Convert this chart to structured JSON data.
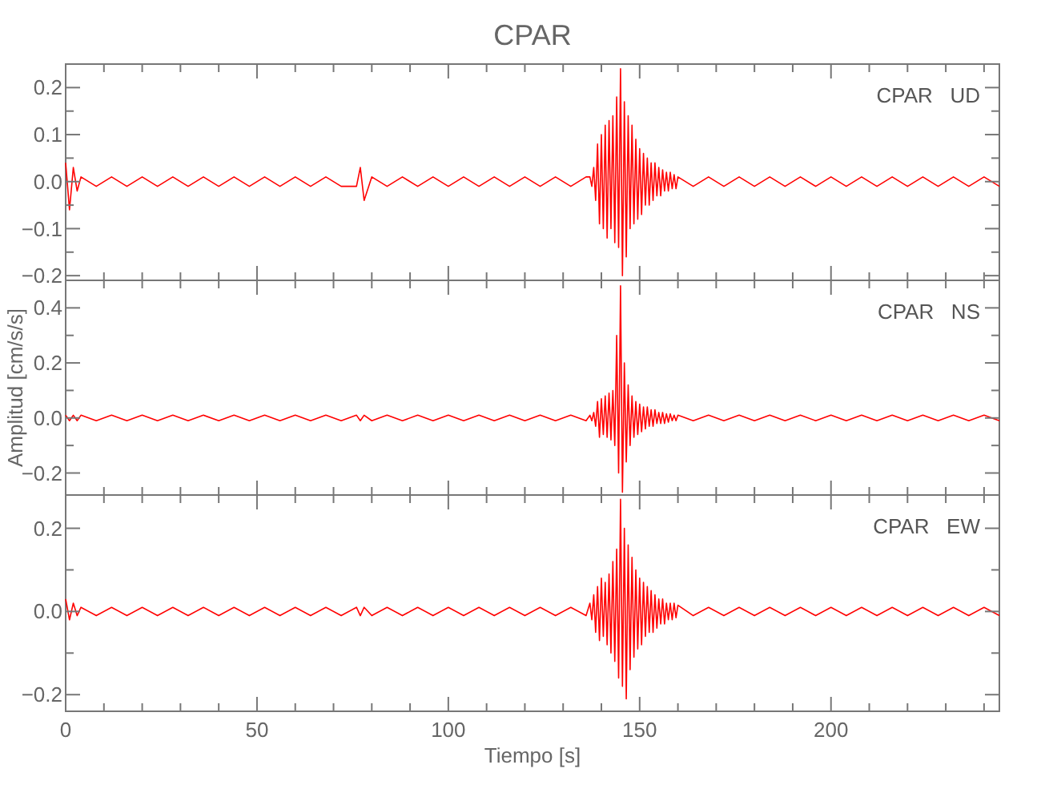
{
  "chart_data": [
    {
      "type": "line",
      "title": "CPAR",
      "annotations": [
        "CPAR   UD"
      ],
      "tick_labels": "y",
      "xlim": [
        0,
        244
      ],
      "ylim": [
        -0.21,
        0.25
      ],
      "xticks": [
        0,
        {
          "value": 10,
          "label": null
        },
        {
          "value": 20,
          "label": null
        },
        {
          "value": 30,
          "label": null
        },
        {
          "value": 40,
          "label": null
        },
        50,
        {
          "value": 60,
          "label": null
        },
        {
          "value": 70,
          "label": null
        },
        {
          "value": 80,
          "label": null
        },
        {
          "value": 90,
          "label": null
        },
        100,
        {
          "value": 110,
          "label": null
        },
        {
          "value": 120,
          "label": null
        },
        {
          "value": 130,
          "label": null
        },
        {
          "value": 140,
          "label": null
        },
        150,
        {
          "value": 160,
          "label": null
        },
        {
          "value": 170,
          "label": null
        },
        {
          "value": 180,
          "label": null
        },
        {
          "value": 190,
          "label": null
        },
        200,
        {
          "value": 210,
          "label": null
        },
        {
          "value": 220,
          "label": null
        },
        {
          "value": 230,
          "label": null
        },
        {
          "value": 240,
          "label": null
        }
      ],
      "yticks": [
        {
          "value": -0.2,
          "label": "−0.2"
        },
        {
          "value": -0.15,
          "label": null
        },
        {
          "value": -0.1,
          "label": "−0.1"
        },
        {
          "value": -0.05,
          "label": null
        },
        {
          "value": 0,
          "label": "0.0"
        },
        {
          "value": 0.05,
          "label": null
        },
        0.1,
        {
          "value": 0.15,
          "label": null
        },
        0.2
      ],
      "x": [
        0,
        1,
        2,
        3,
        4,
        8,
        12,
        16,
        20,
        24,
        28,
        32,
        36,
        40,
        44,
        48,
        52,
        56,
        60,
        64,
        68,
        72,
        76,
        77,
        78,
        80,
        84,
        88,
        92,
        96,
        100,
        104,
        108,
        112,
        116,
        120,
        124,
        128,
        132,
        136,
        137,
        137.5,
        138,
        138.5,
        139,
        139.5,
        140,
        140.5,
        141,
        141.5,
        142,
        142.5,
        143,
        143.5,
        144,
        144.5,
        145,
        145.5,
        146,
        146.5,
        147,
        147.5,
        148,
        148.5,
        149,
        149.5,
        150,
        150.5,
        151,
        151.5,
        152,
        152.5,
        153,
        153.5,
        154,
        154.5,
        155,
        155.5,
        156,
        156.5,
        157,
        157.5,
        158,
        158.5,
        159,
        159.5,
        160,
        164,
        168,
        172,
        176,
        180,
        184,
        188,
        192,
        196,
        200,
        204,
        208,
        212,
        216,
        220,
        224,
        228,
        232,
        236,
        240,
        244
      ],
      "series": [
        {
          "color": "#ff0000",
          "values": [
            0.04,
            -0.06,
            0.03,
            -0.02,
            0.01,
            -0.01,
            0.01,
            -0.01,
            0.01,
            -0.01,
            0.01,
            -0.01,
            0.01,
            -0.01,
            0.01,
            -0.01,
            0.01,
            -0.01,
            0.01,
            -0.01,
            0.01,
            -0.01,
            -0.01,
            0.03,
            -0.04,
            0.01,
            -0.01,
            0.01,
            -0.01,
            0.01,
            -0.01,
            0.01,
            -0.01,
            0.01,
            -0.01,
            0.01,
            -0.01,
            0.01,
            -0.01,
            0.01,
            0.01,
            -0.01,
            0.03,
            -0.04,
            0.08,
            -0.09,
            0.1,
            -0.1,
            0.12,
            -0.12,
            0.13,
            -0.1,
            0.14,
            -0.13,
            0.18,
            -0.14,
            0.24,
            -0.2,
            0.17,
            -0.16,
            0.14,
            -0.1,
            0.12,
            -0.09,
            0.09,
            -0.08,
            0.07,
            -0.07,
            0.06,
            -0.05,
            0.05,
            -0.05,
            0.04,
            -0.04,
            0.04,
            -0.03,
            0.03,
            -0.03,
            0.025,
            -0.02,
            0.02,
            -0.02,
            0.02,
            -0.015,
            0.015,
            -0.015,
            0.01,
            -0.01,
            0.01,
            -0.01,
            0.01,
            -0.01,
            0.01,
            -0.01,
            0.01,
            -0.01,
            0.01,
            -0.01,
            0.01,
            -0.01,
            0.01,
            -0.01,
            0.01,
            -0.01,
            0.01,
            -0.01,
            0.01,
            -0.01
          ]
        }
      ]
    },
    {
      "type": "line",
      "ylabel": "Amplitud  [cm/s/s]",
      "annotations": [
        "CPAR   NS"
      ],
      "tick_labels": "y",
      "xlim": [
        0,
        244
      ],
      "ylim": [
        -0.28,
        0.5
      ],
      "xticks": [
        0,
        {
          "value": 10,
          "label": null
        },
        {
          "value": 20,
          "label": null
        },
        {
          "value": 30,
          "label": null
        },
        {
          "value": 40,
          "label": null
        },
        50,
        {
          "value": 60,
          "label": null
        },
        {
          "value": 70,
          "label": null
        },
        {
          "value": 80,
          "label": null
        },
        {
          "value": 90,
          "label": null
        },
        100,
        {
          "value": 110,
          "label": null
        },
        {
          "value": 120,
          "label": null
        },
        {
          "value": 130,
          "label": null
        },
        {
          "value": 140,
          "label": null
        },
        150,
        {
          "value": 160,
          "label": null
        },
        {
          "value": 170,
          "label": null
        },
        {
          "value": 180,
          "label": null
        },
        {
          "value": 190,
          "label": null
        },
        200,
        {
          "value": 210,
          "label": null
        },
        {
          "value": 220,
          "label": null
        },
        {
          "value": 230,
          "label": null
        },
        {
          "value": 240,
          "label": null
        }
      ],
      "yticks": [
        {
          "value": -0.2,
          "label": "−0.2"
        },
        {
          "value": -0.1,
          "label": null
        },
        {
          "value": 0,
          "label": "0.0"
        },
        {
          "value": 0.1,
          "label": null
        },
        0.2,
        {
          "value": 0.3,
          "label": null
        },
        0.4
      ],
      "x": [
        0,
        1,
        2,
        3,
        4,
        8,
        12,
        16,
        20,
        24,
        28,
        32,
        36,
        40,
        44,
        48,
        52,
        56,
        60,
        64,
        68,
        72,
        76,
        77,
        78,
        80,
        84,
        88,
        92,
        96,
        100,
        104,
        108,
        112,
        116,
        120,
        124,
        128,
        132,
        136,
        137,
        137.5,
        138,
        138.5,
        139,
        139.5,
        140,
        140.5,
        141,
        141.5,
        142,
        142.5,
        143,
        143.5,
        144,
        144.5,
        145,
        145.5,
        146,
        146.5,
        147,
        147.5,
        148,
        148.5,
        149,
        149.5,
        150,
        150.5,
        151,
        151.5,
        152,
        152.5,
        153,
        153.5,
        154,
        154.5,
        155,
        155.5,
        156,
        156.5,
        157,
        157.5,
        158,
        158.5,
        159,
        159.5,
        160,
        164,
        168,
        172,
        176,
        180,
        184,
        188,
        192,
        196,
        200,
        204,
        208,
        212,
        216,
        220,
        224,
        228,
        232,
        236,
        240,
        244
      ],
      "series": [
        {
          "color": "#ff0000",
          "values": [
            0.01,
            -0.01,
            0.01,
            -0.01,
            0.01,
            -0.01,
            0.01,
            -0.01,
            0.01,
            -0.01,
            0.01,
            -0.01,
            0.01,
            -0.01,
            0.01,
            -0.01,
            0.01,
            -0.01,
            0.01,
            -0.01,
            0.01,
            -0.01,
            0.01,
            -0.01,
            0.01,
            -0.01,
            0.01,
            -0.01,
            0.01,
            -0.01,
            0.01,
            -0.01,
            0.01,
            -0.01,
            0.01,
            -0.01,
            0.01,
            -0.01,
            0.01,
            -0.01,
            0.01,
            -0.01,
            0.02,
            -0.03,
            0.06,
            -0.07,
            0.07,
            -0.06,
            0.08,
            -0.07,
            0.09,
            -0.08,
            0.1,
            -0.1,
            0.3,
            -0.2,
            0.48,
            -0.27,
            0.2,
            -0.16,
            0.12,
            -0.1,
            0.08,
            -0.07,
            0.06,
            -0.06,
            0.05,
            -0.05,
            0.04,
            -0.04,
            0.04,
            -0.03,
            0.03,
            -0.03,
            0.03,
            -0.02,
            0.02,
            -0.02,
            0.02,
            -0.02,
            0.015,
            -0.015,
            0.015,
            -0.01,
            0.01,
            -0.01,
            0.01,
            -0.01,
            0.01,
            -0.01,
            0.01,
            -0.01,
            0.01,
            -0.01,
            0.01,
            -0.01,
            0.01,
            -0.01,
            0.01,
            -0.01,
            0.01,
            -0.01,
            0.01,
            -0.01,
            0.01,
            -0.01,
            0.01,
            -0.01
          ]
        }
      ]
    },
    {
      "type": "line",
      "xlabel": "Tiempo  [s]",
      "annotations": [
        "CPAR   EW"
      ],
      "xlim": [
        0,
        244
      ],
      "ylim": [
        -0.24,
        0.28
      ],
      "xticks": [
        0,
        {
          "value": 10,
          "label": null
        },
        {
          "value": 20,
          "label": null
        },
        {
          "value": 30,
          "label": null
        },
        {
          "value": 40,
          "label": null
        },
        50,
        {
          "value": 60,
          "label": null
        },
        {
          "value": 70,
          "label": null
        },
        {
          "value": 80,
          "label": null
        },
        {
          "value": 90,
          "label": null
        },
        100,
        {
          "value": 110,
          "label": null
        },
        {
          "value": 120,
          "label": null
        },
        {
          "value": 130,
          "label": null
        },
        {
          "value": 140,
          "label": null
        },
        150,
        {
          "value": 160,
          "label": null
        },
        {
          "value": 170,
          "label": null
        },
        {
          "value": 180,
          "label": null
        },
        {
          "value": 190,
          "label": null
        },
        200,
        {
          "value": 210,
          "label": null
        },
        {
          "value": 220,
          "label": null
        },
        {
          "value": 230,
          "label": null
        },
        {
          "value": 240,
          "label": null
        }
      ],
      "yticks": [
        {
          "value": -0.2,
          "label": "−0.2"
        },
        {
          "value": -0.1,
          "label": null
        },
        {
          "value": 0,
          "label": "0.0"
        },
        {
          "value": 0.1,
          "label": null
        },
        0.2
      ],
      "x": [
        0,
        1,
        2,
        3,
        4,
        8,
        12,
        16,
        20,
        24,
        28,
        32,
        36,
        40,
        44,
        48,
        52,
        56,
        60,
        64,
        68,
        72,
        76,
        77,
        78,
        80,
        84,
        88,
        92,
        96,
        100,
        104,
        108,
        112,
        116,
        120,
        124,
        128,
        132,
        136,
        137,
        137.5,
        138,
        138.5,
        139,
        139.5,
        140,
        140.5,
        141,
        141.5,
        142,
        142.5,
        143,
        143.5,
        144,
        144.5,
        145,
        145.5,
        146,
        146.5,
        147,
        147.5,
        148,
        148.5,
        149,
        149.5,
        150,
        150.5,
        151,
        151.5,
        152,
        152.5,
        153,
        153.5,
        154,
        154.5,
        155,
        155.5,
        156,
        156.5,
        157,
        157.5,
        158,
        158.5,
        159,
        159.5,
        160,
        164,
        168,
        172,
        176,
        180,
        184,
        188,
        192,
        196,
        200,
        204,
        208,
        212,
        216,
        220,
        224,
        228,
        232,
        236,
        240,
        244
      ],
      "series": [
        {
          "color": "#ff0000",
          "values": [
            0.03,
            -0.02,
            0.02,
            -0.01,
            0.01,
            -0.01,
            0.01,
            -0.01,
            0.01,
            -0.01,
            0.01,
            -0.01,
            0.01,
            -0.01,
            0.01,
            -0.01,
            0.01,
            -0.01,
            0.01,
            -0.01,
            0.01,
            -0.01,
            0.01,
            -0.01,
            0.01,
            -0.01,
            0.01,
            -0.01,
            0.01,
            -0.01,
            0.01,
            -0.01,
            0.01,
            -0.01,
            0.01,
            -0.01,
            0.01,
            -0.01,
            0.01,
            -0.01,
            0.02,
            -0.02,
            0.04,
            -0.05,
            0.06,
            -0.07,
            0.08,
            -0.06,
            0.07,
            -0.08,
            0.09,
            -0.1,
            0.12,
            -0.12,
            0.15,
            -0.16,
            0.27,
            -0.18,
            0.2,
            -0.21,
            0.16,
            -0.14,
            0.13,
            -0.11,
            0.1,
            -0.09,
            0.08,
            -0.08,
            0.07,
            -0.06,
            0.06,
            -0.05,
            0.05,
            -0.05,
            0.04,
            -0.04,
            0.03,
            -0.03,
            0.03,
            -0.03,
            0.02,
            -0.02,
            0.02,
            -0.02,
            0.02,
            -0.015,
            0.015,
            -0.01,
            0.01,
            -0.01,
            0.01,
            -0.01,
            0.01,
            -0.01,
            0.01,
            -0.01,
            0.01,
            -0.01,
            0.01,
            -0.01,
            0.01,
            -0.01,
            0.01,
            -0.01,
            0.01,
            -0.01,
            0.01,
            -0.01
          ]
        }
      ]
    }
  ]
}
